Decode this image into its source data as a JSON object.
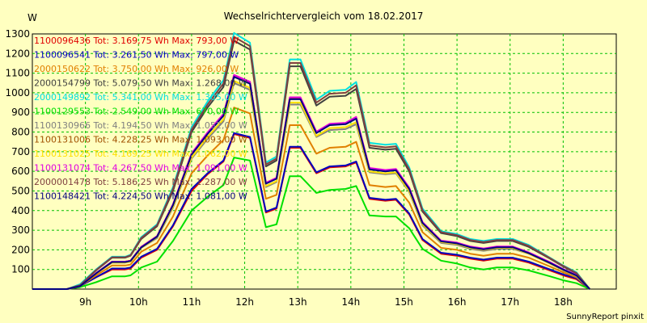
{
  "chart_data": {
    "type": "line",
    "title": "Wechselrichtervergleich vom 18.02.2017",
    "ylabel": "W",
    "xlabel": "",
    "footer": "SunnyReport pinxit",
    "x_unit": "hour of day",
    "xlim": [
      8.0,
      19.0
    ],
    "ylim": [
      0,
      1300
    ],
    "grid": true,
    "legend_position": "top-left inside plot",
    "x_ticks": [
      {
        "x": 9,
        "label": "9h"
      },
      {
        "x": 10,
        "label": "10h"
      },
      {
        "x": 11,
        "label": "11h"
      },
      {
        "x": 12,
        "label": "12h"
      },
      {
        "x": 13,
        "label": "13h"
      },
      {
        "x": 14,
        "label": "14h"
      },
      {
        "x": 15,
        "label": "15h"
      },
      {
        "x": 16,
        "label": "16h"
      },
      {
        "x": 17,
        "label": "17h"
      },
      {
        "x": 18,
        "label": "18h"
      }
    ],
    "y_ticks": [
      100,
      200,
      300,
      400,
      500,
      600,
      700,
      800,
      900,
      1000,
      1100,
      1200,
      1300
    ],
    "x": [
      8.0,
      8.35,
      8.65,
      8.9,
      9.2,
      9.5,
      9.75,
      9.85,
      10.05,
      10.35,
      10.65,
      11.0,
      11.3,
      11.6,
      11.8,
      12.1,
      12.4,
      12.6,
      12.85,
      13.05,
      13.35,
      13.6,
      13.9,
      14.1,
      14.35,
      14.65,
      14.85,
      15.1,
      15.35,
      15.7,
      16.0,
      16.25,
      16.5,
      16.75,
      17.05,
      17.35,
      17.75,
      18.0,
      18.25,
      18.5
    ],
    "series": [
      {
        "label": "1100096436 Tot: 3.169,75 Wh Max: 793,00 W",
        "color": "#E00000",
        "values": [
          0,
          0,
          0,
          15,
          60,
          100,
          100,
          105,
          160,
          200,
          320,
          500,
          585,
          650,
          790,
          770,
          390,
          410,
          720,
          720,
          590,
          620,
          625,
          645,
          460,
          450,
          455,
          380,
          250,
          180,
          170,
          155,
          145,
          155,
          155,
          135,
          95,
          70,
          50,
          0
        ]
      },
      {
        "label": "1100096541 Tot: 3.261,50 Wh Max: 797,00 W",
        "color": "#0000C0",
        "values": [
          0,
          0,
          0,
          15,
          60,
          105,
          105,
          110,
          165,
          205,
          325,
          510,
          590,
          655,
          795,
          775,
          395,
          415,
          725,
          725,
          595,
          625,
          630,
          650,
          465,
          455,
          460,
          385,
          255,
          185,
          175,
          160,
          150,
          160,
          160,
          140,
          100,
          75,
          55,
          0
        ]
      },
      {
        "label": "2000150622 Tot: 3.750,00 Wh Max: 926,00 W",
        "color": "#E08000",
        "values": [
          0,
          0,
          0,
          15,
          70,
          120,
          120,
          125,
          190,
          235,
          370,
          590,
          680,
          760,
          925,
          895,
          460,
          480,
          835,
          835,
          690,
          720,
          725,
          750,
          530,
          520,
          525,
          440,
          290,
          210,
          200,
          180,
          170,
          180,
          180,
          160,
          115,
          85,
          60,
          0
        ]
      },
      {
        "label": "2000154799 Tot: 5.079,50 Wh Max: 1.268,00 W",
        "color": "#404040",
        "values": [
          0,
          0,
          0,
          20,
          95,
          160,
          160,
          170,
          255,
          320,
          500,
          800,
          925,
          1030,
          1265,
          1220,
          625,
          655,
          1135,
          1135,
          935,
          980,
          985,
          1020,
          720,
          710,
          715,
          600,
          395,
          285,
          270,
          245,
          235,
          245,
          245,
          215,
          155,
          115,
          80,
          0
        ]
      },
      {
        "label": "2000149892 Tot: 5.341,00 Wh Max: 1.305,00 W",
        "color": "#00E0E0",
        "values": [
          0,
          0,
          0,
          25,
          100,
          165,
          165,
          175,
          265,
          330,
          520,
          825,
          955,
          1065,
          1305,
          1255,
          645,
          675,
          1170,
          1170,
          965,
          1010,
          1015,
          1055,
          745,
          735,
          740,
          620,
          410,
          295,
          280,
          255,
          245,
          255,
          255,
          225,
          160,
          120,
          85,
          0
        ]
      },
      {
        "label": "1100129553 Tot: 2.549,00 Wh Max: 670,00 W",
        "color": "#00E000",
        "values": [
          0,
          0,
          0,
          10,
          35,
          65,
          65,
          70,
          110,
          140,
          245,
          400,
          470,
          530,
          670,
          655,
          315,
          330,
          575,
          575,
          490,
          505,
          510,
          525,
          375,
          370,
          370,
          310,
          205,
          145,
          130,
          110,
          100,
          110,
          110,
          95,
          65,
          45,
          30,
          0
        ]
      },
      {
        "label": "1100130966 Tot: 4.194,50 Wh Max: 1.052,00 W",
        "color": "#808080",
        "values": [
          0,
          0,
          0,
          15,
          80,
          135,
          135,
          140,
          210,
          260,
          415,
          665,
          765,
          855,
          1050,
          1015,
          520,
          545,
          940,
          940,
          775,
          810,
          815,
          840,
          595,
          585,
          590,
          495,
          325,
          235,
          225,
          205,
          195,
          205,
          205,
          180,
          130,
          95,
          65,
          0
        ]
      },
      {
        "label": "1100131006 Tot: 4.228,25 Wh Max: 1.093,00 W",
        "color": "#A05000",
        "values": [
          0,
          0,
          0,
          15,
          80,
          140,
          140,
          145,
          215,
          270,
          430,
          690,
          795,
          890,
          1090,
          1055,
          540,
          565,
          975,
          975,
          800,
          840,
          845,
          875,
          615,
          605,
          610,
          515,
          340,
          245,
          235,
          215,
          205,
          215,
          215,
          185,
          135,
          100,
          70,
          0
        ]
      },
      {
        "label": "1100131025 Tot: 4.169,25 Wh Max: 1.062,00 W",
        "color": "#FFE000",
        "values": [
          0,
          0,
          0,
          15,
          80,
          135,
          135,
          140,
          210,
          265,
          420,
          670,
          775,
          865,
          1060,
          1025,
          525,
          550,
          950,
          950,
          780,
          820,
          825,
          850,
          600,
          590,
          595,
          500,
          330,
          240,
          230,
          210,
          200,
          210,
          210,
          180,
          130,
          97,
          67,
          0
        ]
      },
      {
        "label": "1100131074 Tot: 4.267,50 Wh Max: 1.091,00 W",
        "color": "#E000E0",
        "values": [
          0,
          0,
          0,
          15,
          82,
          140,
          140,
          145,
          215,
          270,
          432,
          692,
          798,
          892,
          1091,
          1056,
          542,
          567,
          977,
          977,
          802,
          842,
          847,
          877,
          617,
          607,
          612,
          517,
          342,
          247,
          237,
          217,
          207,
          217,
          217,
          187,
          137,
          102,
          72,
          0
        ]
      },
      {
        "label": "2000001478 Tot: 5.186,25 Wh Max: 1.287,00 W",
        "color": "#804040",
        "values": [
          0,
          0,
          0,
          20,
          97,
          162,
          162,
          172,
          260,
          325,
          510,
          812,
          940,
          1048,
          1285,
          1238,
          635,
          665,
          1152,
          1152,
          950,
          995,
          1000,
          1038,
          732,
          722,
          727,
          610,
          402,
          290,
          275,
          250,
          240,
          250,
          250,
          220,
          158,
          118,
          82,
          0
        ]
      },
      {
        "label": "1100148421 Tot: 4.224,50 Wh Max: 1.081,00 W",
        "color": "#000080",
        "values": [
          0,
          0,
          0,
          15,
          80,
          138,
          138,
          143,
          212,
          267,
          428,
          685,
          790,
          883,
          1081,
          1046,
          537,
          562,
          967,
          967,
          795,
          835,
          840,
          868,
          610,
          600,
          605,
          510,
          337,
          243,
          233,
          213,
          203,
          213,
          213,
          183,
          133,
          99,
          69,
          0
        ]
      }
    ]
  }
}
